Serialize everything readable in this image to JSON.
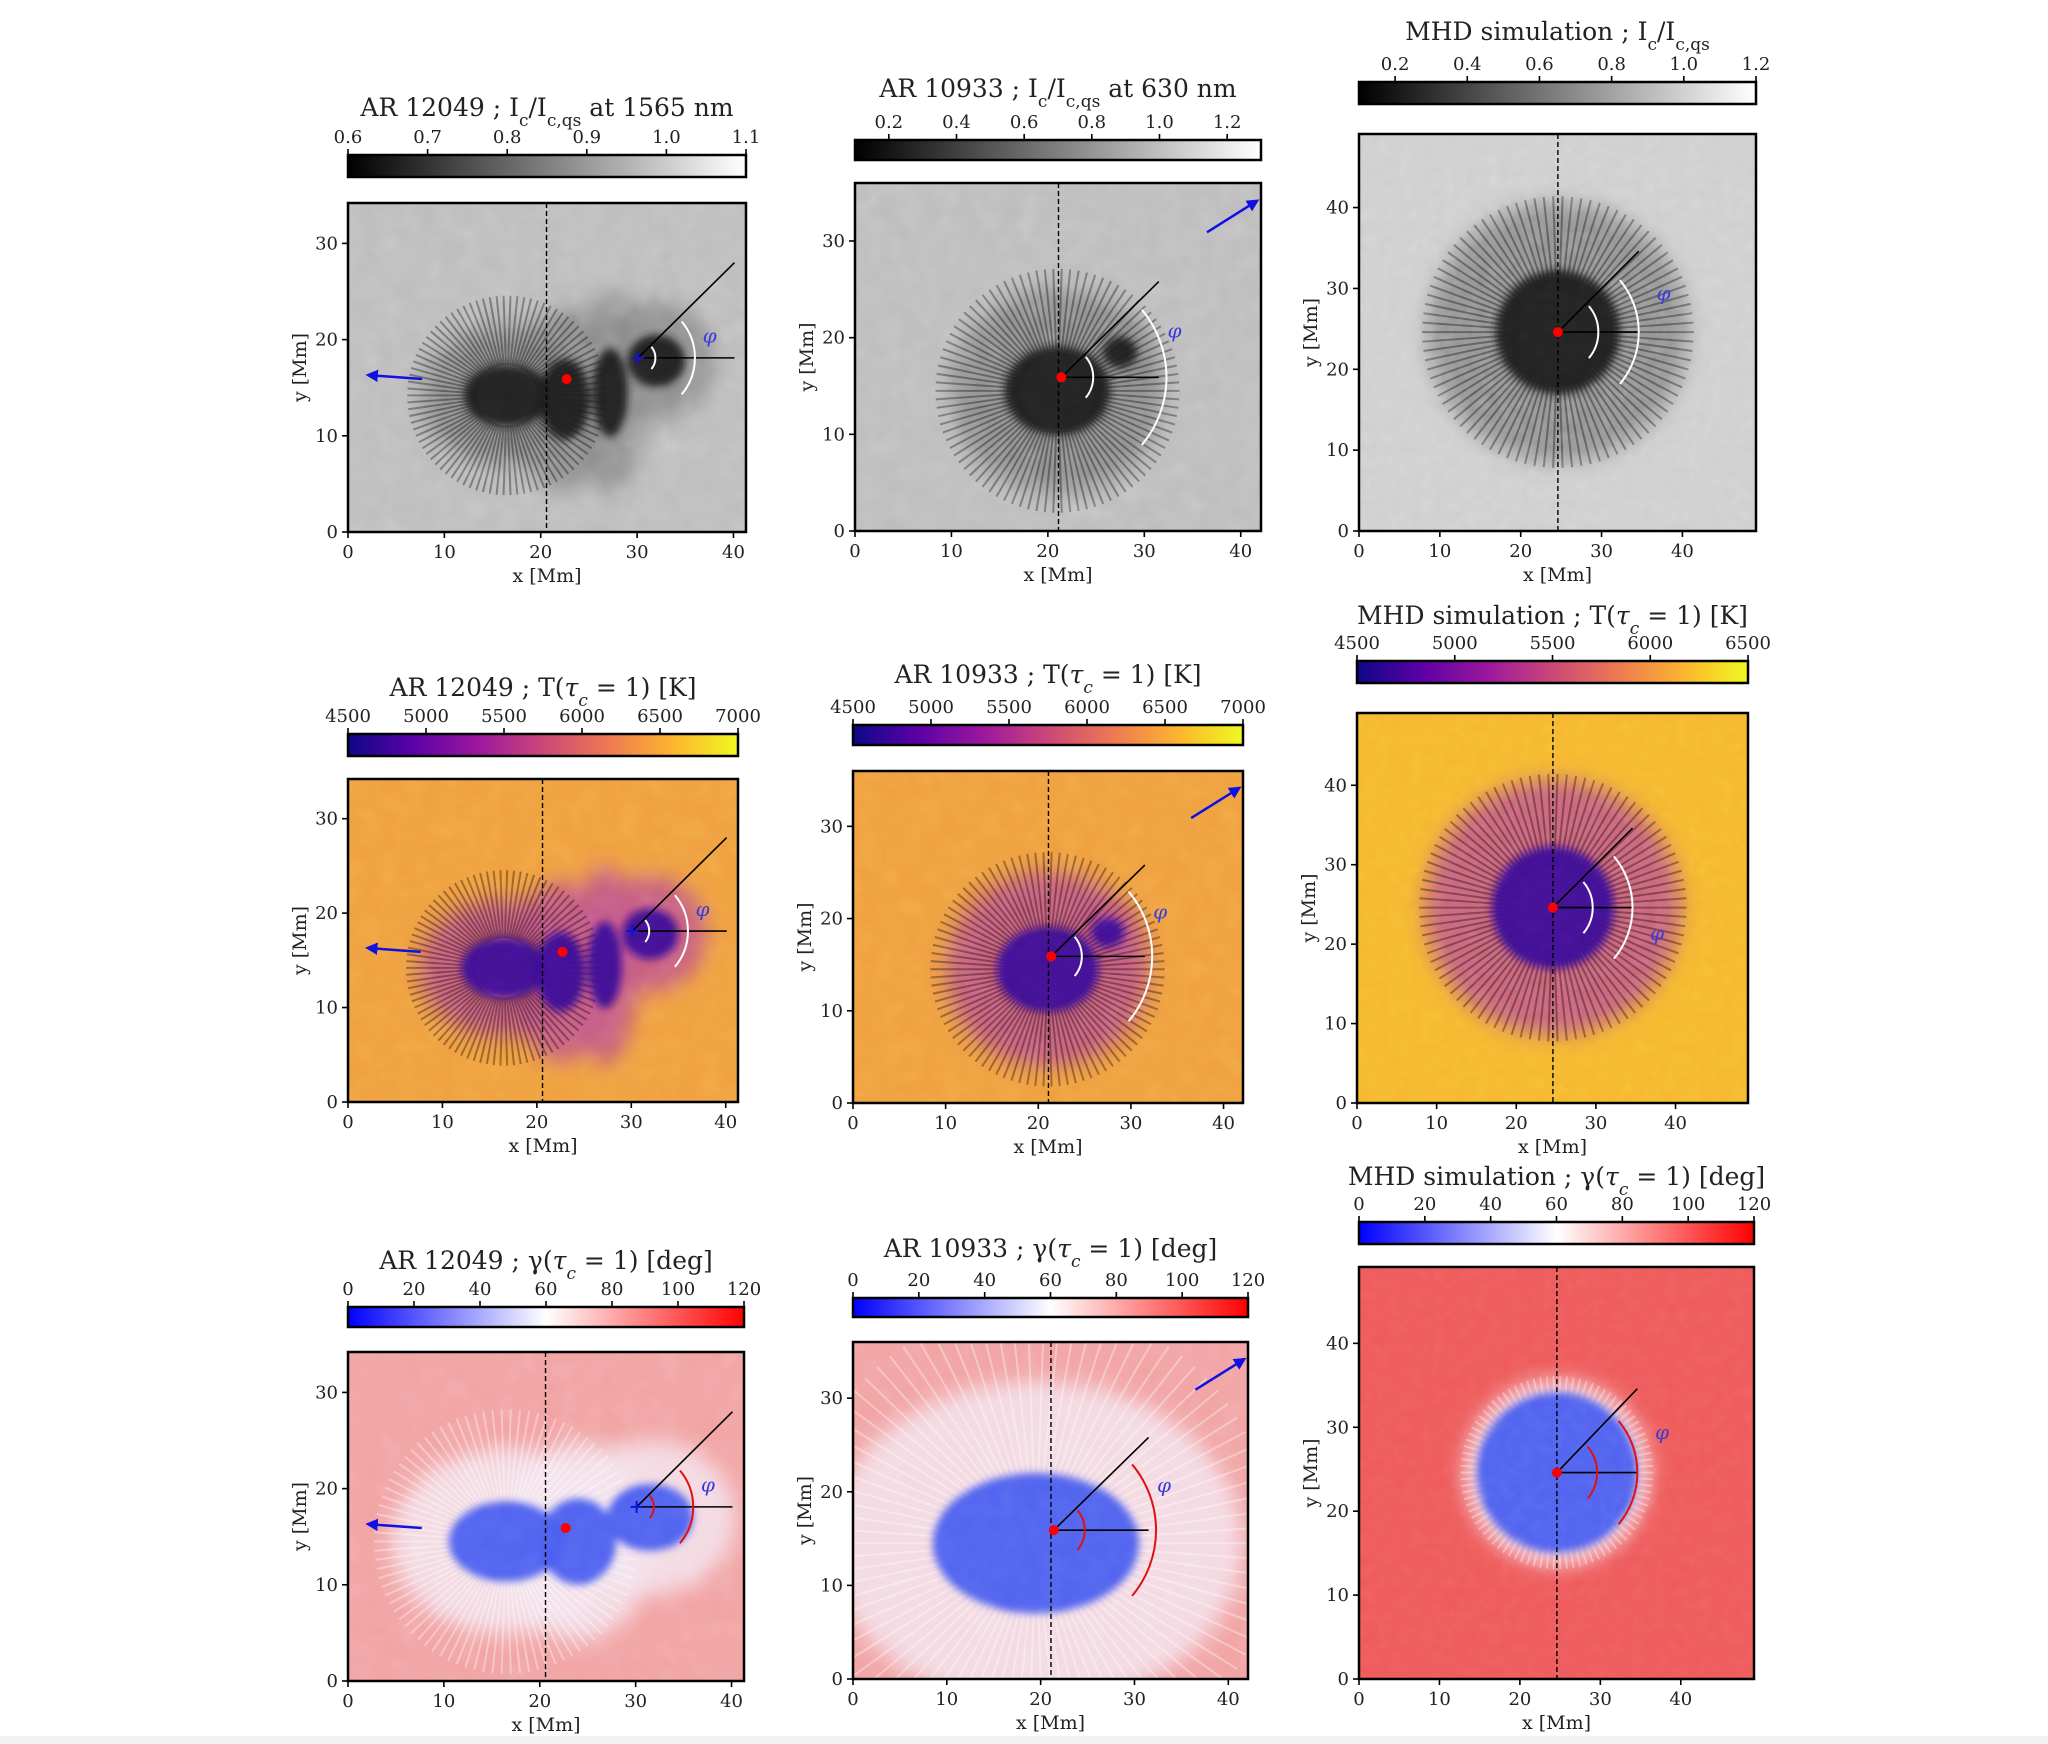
{
  "figure": {
    "description": "3x3 grid of solar sunspot maps: continuum intensity, temperature and magnetic inclination for AR 12049, AR 10933 and an MHD simulation",
    "phi_label": "φ",
    "x_label": "x [Mm]",
    "y_label": "y [Mm]"
  },
  "colormaps": {
    "gray": [
      "#000000",
      "#ffffff"
    ],
    "plasma": [
      "#0d0887",
      "#5c01a6",
      "#9c179e",
      "#cc4778",
      "#ed7953",
      "#fdb42f",
      "#f0f921"
    ],
    "bwr": [
      "#0000ff",
      "#ffffff",
      "#ff0000"
    ]
  },
  "marker_colors": {
    "center_dot": "#ff0000",
    "arrow": "#1010e0",
    "phi_label": "#3a3ad8",
    "line": "#000000",
    "arc_light": "#ffffff",
    "arc_on_bwr": "#e01010"
  },
  "chart_data": [
    {
      "type": "heatmap",
      "id": "ar12049-intensity",
      "title": "AR 12049 ; I_c/I_c,qs at 1565 nm",
      "title_parts": {
        "pre": "AR 12049 ; I",
        "sub1": "c",
        "mid": "/I",
        "sub2": "c,qs",
        "post": " at 1565 nm"
      },
      "colormap": "gray",
      "colorbar": {
        "range": [
          0.6,
          1.1
        ],
        "ticks": [
          "0.6",
          "0.7",
          "0.8",
          "0.9",
          "1.0",
          "1.1"
        ],
        "tick_values": [
          0.6,
          0.7,
          0.8,
          0.9,
          1.0,
          1.1
        ]
      },
      "xlabel": "x [Mm]",
      "ylabel": "y [Mm]",
      "xlim": [
        0,
        41.3
      ],
      "ylim": [
        0,
        34.2
      ],
      "xticks": [
        0,
        10,
        20,
        30,
        40
      ],
      "yticks": [
        0,
        10,
        20,
        30
      ],
      "dashed_vline_x": 20.6,
      "center_dot": [
        22.7,
        15.9
      ],
      "origin_cross": [
        30.1,
        18.1
      ],
      "ray_end": [
        40.1,
        28.0
      ],
      "hline_end_x": 40.1,
      "arcs": [
        {
          "r": 1.8
        },
        {
          "r": 5.9
        }
      ],
      "phi_label_pos": [
        36.8,
        19.7
      ],
      "arrow": {
        "from": [
          7.7,
          15.9
        ],
        "to": [
          2.2,
          16.3
        ]
      },
      "theme": "intensity",
      "spot_blobs": [
        [
          16.5,
          14.2,
          4.5,
          3.2
        ],
        [
          22.5,
          13.8,
          2.6,
          4.2
        ],
        [
          27.2,
          14.5,
          1.8,
          4.6
        ],
        [
          32.0,
          17.8,
          3.0,
          2.7
        ]
      ]
    },
    {
      "type": "heatmap",
      "id": "ar10933-intensity",
      "title": "AR 10933 ; I_c/I_c,qs at 630 nm",
      "title_parts": {
        "pre": "AR 10933 ; I",
        "sub1": "c",
        "mid": "/I",
        "sub2": "c,qs",
        "post": " at 630 nm"
      },
      "colormap": "gray",
      "colorbar": {
        "range": [
          0.1,
          1.3
        ],
        "ticks": [
          "0.2",
          "0.4",
          "0.6",
          "0.8",
          "1.0",
          "1.2"
        ],
        "tick_values": [
          0.2,
          0.4,
          0.6,
          0.8,
          1.0,
          1.2
        ]
      },
      "xlabel": "x [Mm]",
      "ylabel": "y [Mm]",
      "xlim": [
        0,
        42.1
      ],
      "ylim": [
        0,
        36.0
      ],
      "xticks": [
        0,
        10,
        20,
        30,
        40
      ],
      "yticks": [
        0,
        10,
        20,
        30
      ],
      "dashed_vline_x": 21.1,
      "center_dot": [
        21.4,
        15.9
      ],
      "origin_cross": [
        21.4,
        15.9
      ],
      "ray_end": [
        31.5,
        25.8
      ],
      "hline_end_x": 31.5,
      "arcs": [
        {
          "r": 3.3
        },
        {
          "r": 10.9
        }
      ],
      "phi_label_pos": [
        32.4,
        20.0
      ],
      "arrow": {
        "from": [
          36.5,
          30.9
        ],
        "to": [
          41.6,
          34.1
        ]
      },
      "theme": "intensity",
      "spot_blobs": [
        [
          21.0,
          14.5,
          5.5,
          4.6
        ],
        [
          27.5,
          18.5,
          1.8,
          1.6
        ]
      ]
    },
    {
      "type": "heatmap",
      "id": "mhd-intensity",
      "title": "MHD simulation ; I_c/I_c,qs",
      "title_parts": {
        "pre": "MHD simulation ; I",
        "sub1": "c",
        "mid": "/I",
        "sub2": "c,qs",
        "post": ""
      },
      "colormap": "gray",
      "colorbar": {
        "range": [
          0.1,
          1.2
        ],
        "ticks": [
          "0.2",
          "0.4",
          "0.6",
          "0.8",
          "1.0",
          "1.2"
        ],
        "tick_values": [
          0.2,
          0.4,
          0.6,
          0.8,
          1.0,
          1.2
        ]
      },
      "xlabel": "x [Mm]",
      "ylabel": "y [Mm]",
      "xlim": [
        0,
        49.1
      ],
      "ylim": [
        0,
        49.1
      ],
      "xticks": [
        0,
        10,
        20,
        30,
        40
      ],
      "yticks": [
        0,
        10,
        20,
        30,
        40
      ],
      "dashed_vline_x": 24.6,
      "center_dot": [
        24.6,
        24.6
      ],
      "origin_cross": [
        24.6,
        24.6
      ],
      "ray_end": [
        34.6,
        34.6
      ],
      "hline_end_x": 34.6,
      "arcs": [
        {
          "r": 5.0
        },
        {
          "r": 10.0
        }
      ],
      "phi_label_pos": [
        36.8,
        28.6
      ],
      "arrow": null,
      "theme": "intensity",
      "spot_blobs": [
        [
          24.6,
          24.6,
          14.0,
          14.0
        ]
      ]
    },
    {
      "type": "heatmap",
      "id": "ar12049-temperature",
      "title": "AR 12049 ; T(τc = 1) [K]",
      "title_parts": {
        "pre": "AR 12049 ; T(",
        "tau": "τ",
        "tau_sub": "c",
        "post": " = 1) [K]"
      },
      "colormap": "plasma",
      "colorbar": {
        "range": [
          4500,
          7000
        ],
        "ticks": [
          "4500",
          "5000",
          "5500",
          "6000",
          "6500",
          "7000"
        ],
        "tick_values": [
          4500,
          5000,
          5500,
          6000,
          6500,
          7000
        ]
      },
      "xlabel": "x [Mm]",
      "ylabel": "y [Mm]",
      "xlim": [
        0,
        41.3
      ],
      "ylim": [
        0,
        34.2
      ],
      "xticks": [
        0,
        10,
        20,
        30,
        40
      ],
      "yticks": [
        0,
        10,
        20,
        30
      ],
      "dashed_vline_x": 20.6,
      "center_dot": [
        22.7,
        15.9
      ],
      "origin_cross": [
        30.1,
        18.1
      ],
      "ray_end": [
        40.1,
        28.0
      ],
      "hline_end_x": 40.1,
      "arcs": [
        {
          "r": 1.8
        },
        {
          "r": 5.9
        }
      ],
      "phi_label_pos": [
        36.8,
        19.7
      ],
      "arrow": {
        "from": [
          7.7,
          15.9
        ],
        "to": [
          2.2,
          16.3
        ]
      },
      "theme": "temperature",
      "spot_blobs": [
        [
          16.5,
          14.2,
          4.5,
          3.2
        ],
        [
          22.5,
          13.8,
          2.6,
          4.2
        ],
        [
          27.2,
          14.5,
          1.8,
          4.6
        ],
        [
          32.0,
          17.8,
          3.0,
          2.7
        ]
      ]
    },
    {
      "type": "heatmap",
      "id": "ar10933-temperature",
      "title": "AR 10933 ; T(τc = 1) [K]",
      "title_parts": {
        "pre": "AR 10933 ; T(",
        "tau": "τ",
        "tau_sub": "c",
        "post": " = 1) [K]"
      },
      "colormap": "plasma",
      "colorbar": {
        "range": [
          4500,
          7000
        ],
        "ticks": [
          "4500",
          "5000",
          "5500",
          "6000",
          "6500",
          "7000"
        ],
        "tick_values": [
          4500,
          5000,
          5500,
          6000,
          6500,
          7000
        ]
      },
      "xlabel": "x [Mm]",
      "ylabel": "y [Mm]",
      "xlim": [
        0,
        42.1
      ],
      "ylim": [
        0,
        36.0
      ],
      "xticks": [
        0,
        10,
        20,
        30,
        40
      ],
      "yticks": [
        0,
        10,
        20,
        30
      ],
      "dashed_vline_x": 21.1,
      "center_dot": [
        21.4,
        15.9
      ],
      "origin_cross": [
        21.4,
        15.9
      ],
      "ray_end": [
        31.5,
        25.8
      ],
      "hline_end_x": 31.5,
      "arcs": [
        {
          "r": 3.3
        },
        {
          "r": 10.9
        }
      ],
      "phi_label_pos": [
        32.4,
        20.0
      ],
      "arrow": {
        "from": [
          36.5,
          30.9
        ],
        "to": [
          41.6,
          34.1
        ]
      },
      "theme": "temperature",
      "spot_blobs": [
        [
          21.0,
          14.5,
          5.5,
          4.6
        ],
        [
          27.5,
          18.5,
          1.8,
          1.6
        ]
      ]
    },
    {
      "type": "heatmap",
      "id": "mhd-temperature",
      "title": "MHD simulation ; T(τc = 1) [K]",
      "title_parts": {
        "pre": "MHD simulation ; T(",
        "tau": "τ",
        "tau_sub": "c",
        "post": " = 1) [K]"
      },
      "colormap": "plasma",
      "colorbar": {
        "range": [
          4500,
          6500
        ],
        "ticks": [
          "4500",
          "5000",
          "5500",
          "6000",
          "6500"
        ],
        "tick_values": [
          4500,
          5000,
          5500,
          6000,
          6500
        ]
      },
      "xlabel": "x [Mm]",
      "ylabel": "y [Mm]",
      "xlim": [
        0,
        49.1
      ],
      "ylim": [
        0,
        49.1
      ],
      "xticks": [
        0,
        10,
        20,
        30,
        40
      ],
      "yticks": [
        0,
        10,
        20,
        30,
        40
      ],
      "dashed_vline_x": 24.6,
      "center_dot": [
        24.6,
        24.6
      ],
      "origin_cross": [
        24.6,
        24.6
      ],
      "ray_end": [
        34.6,
        34.6
      ],
      "hline_end_x": 34.6,
      "arcs": [
        {
          "r": 5.0
        },
        {
          "r": 10.0
        }
      ],
      "phi_label_pos": [
        36.8,
        20.5
      ],
      "arrow": null,
      "theme": "temperature",
      "spot_blobs": [
        [
          24.6,
          24.6,
          14.0,
          14.0
        ]
      ]
    },
    {
      "type": "heatmap",
      "id": "ar12049-inclination",
      "title": "AR 12049 ; γ(τc = 1) [deg]",
      "title_parts": {
        "pre": "AR 12049 ; γ(",
        "tau": "τ",
        "tau_sub": "c",
        "post": " = 1) [deg]"
      },
      "colormap": "bwr",
      "colorbar": {
        "range": [
          0,
          120
        ],
        "ticks": [
          "0",
          "20",
          "40",
          "60",
          "80",
          "100",
          "120"
        ],
        "tick_values": [
          0,
          20,
          40,
          60,
          80,
          100,
          120
        ]
      },
      "xlabel": "x [Mm]",
      "ylabel": "y [Mm]",
      "xlim": [
        0,
        41.3
      ],
      "ylim": [
        0,
        34.2
      ],
      "xticks": [
        0,
        10,
        20,
        30,
        40
      ],
      "yticks": [
        0,
        10,
        20,
        30
      ],
      "dashed_vline_x": 20.6,
      "center_dot": [
        22.7,
        15.9
      ],
      "origin_cross": [
        30.1,
        18.1
      ],
      "ray_end": [
        40.1,
        28.0
      ],
      "hline_end_x": 40.1,
      "arcs": [
        {
          "r": 1.8
        },
        {
          "r": 5.9
        }
      ],
      "phi_label_pos": [
        36.8,
        19.7
      ],
      "arrow": {
        "from": [
          7.7,
          15.9
        ],
        "to": [
          2.2,
          16.3
        ]
      },
      "theme": "inclination",
      "spot_blobs": [
        [
          16.5,
          14.5,
          6.0,
          4.2
        ],
        [
          24.0,
          14.5,
          4.0,
          4.5
        ],
        [
          31.5,
          17.0,
          4.5,
          3.5
        ]
      ]
    },
    {
      "type": "heatmap",
      "id": "ar10933-inclination",
      "title": "AR 10933 ; γ(τc = 1) [deg]",
      "title_parts": {
        "pre": "AR 10933 ; γ(",
        "tau": "τ",
        "tau_sub": "c",
        "post": " = 1) [deg]"
      },
      "colormap": "bwr",
      "colorbar": {
        "range": [
          0,
          120
        ],
        "ticks": [
          "0",
          "20",
          "40",
          "60",
          "80",
          "100",
          "120"
        ],
        "tick_values": [
          0,
          20,
          40,
          60,
          80,
          100,
          120
        ]
      },
      "xlabel": "x [Mm]",
      "ylabel": "y [Mm]",
      "xlim": [
        0,
        42.1
      ],
      "ylim": [
        0,
        36.0
      ],
      "xticks": [
        0,
        10,
        20,
        30,
        40
      ],
      "yticks": [
        0,
        10,
        20,
        30
      ],
      "dashed_vline_x": 21.1,
      "center_dot": [
        21.4,
        15.9
      ],
      "origin_cross": [
        21.4,
        15.9
      ],
      "ray_end": [
        31.5,
        25.8
      ],
      "hline_end_x": 31.5,
      "arcs": [
        {
          "r": 3.3
        },
        {
          "r": 10.9
        }
      ],
      "phi_label_pos": [
        32.4,
        20.0
      ],
      "arrow": {
        "from": [
          36.5,
          30.9
        ],
        "to": [
          41.6,
          34.1
        ]
      },
      "theme": "inclination",
      "spot_blobs": [
        [
          19.5,
          14.5,
          11.0,
          7.5
        ]
      ]
    },
    {
      "type": "heatmap",
      "id": "mhd-inclination",
      "title": "MHD simulation ; γ(τc = 1) [deg]",
      "title_parts": {
        "pre": "MHD simulation ; γ(",
        "tau": "τ",
        "tau_sub": "c",
        "post": " = 1) [deg]"
      },
      "colormap": "bwr",
      "colorbar": {
        "range": [
          0,
          120
        ],
        "ticks": [
          "0",
          "20",
          "40",
          "60",
          "80",
          "100",
          "120"
        ],
        "tick_values": [
          0,
          20,
          40,
          60,
          80,
          100,
          120
        ]
      },
      "xlabel": "x [Mm]",
      "ylabel": "y [Mm]",
      "xlim": [
        0,
        49.1
      ],
      "ylim": [
        0,
        49.1
      ],
      "xticks": [
        0,
        10,
        20,
        30,
        40
      ],
      "yticks": [
        0,
        10,
        20,
        30,
        40
      ],
      "dashed_vline_x": 24.6,
      "center_dot": [
        24.6,
        24.6
      ],
      "origin_cross": [
        24.6,
        24.6
      ],
      "ray_end": [
        34.6,
        34.6
      ],
      "hline_end_x": 34.6,
      "arcs": [
        {
          "r": 5.0
        },
        {
          "r": 10.0
        }
      ],
      "phi_label_pos": [
        36.8,
        28.6
      ],
      "arrow": null,
      "theme": "inclination",
      "spot_blobs": [
        [
          24.6,
          24.6,
          10.0,
          10.0
        ]
      ]
    }
  ]
}
